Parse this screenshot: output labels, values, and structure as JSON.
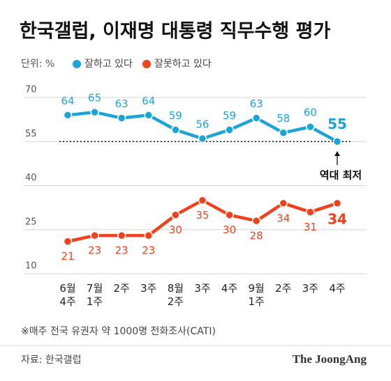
{
  "chart_data": {
    "type": "line",
    "title": "한국갤럽, 이재명 대통령 직무수행 평가",
    "unit_label": "단위: %",
    "categories": [
      "6월\n4주",
      "7월\n1주",
      "2주",
      "3주",
      "8월\n2주",
      "3주",
      "4주",
      "9월\n1주",
      "2주",
      "3주",
      "4주"
    ],
    "series": [
      {
        "name": "잘하고 있다",
        "color": "#1ba4d8",
        "values": [
          64,
          65,
          63,
          64,
          59,
          56,
          59,
          63,
          58,
          60,
          55
        ]
      },
      {
        "name": "잘못하고 있다",
        "color": "#f0411c",
        "values": [
          21,
          23,
          23,
          23,
          30,
          35,
          30,
          28,
          34,
          31,
          34
        ]
      }
    ],
    "ylim": [
      10,
      70
    ],
    "yticks": [
      10,
      25,
      40,
      55,
      70
    ],
    "grid": true,
    "reference_line": 55,
    "annotation": "역대 최저",
    "footnote": "※매주 전국 유권자 약 1000명 전화조사(CATI)",
    "source": "자료: 한국갤럽",
    "brand": "The JoongAng"
  }
}
